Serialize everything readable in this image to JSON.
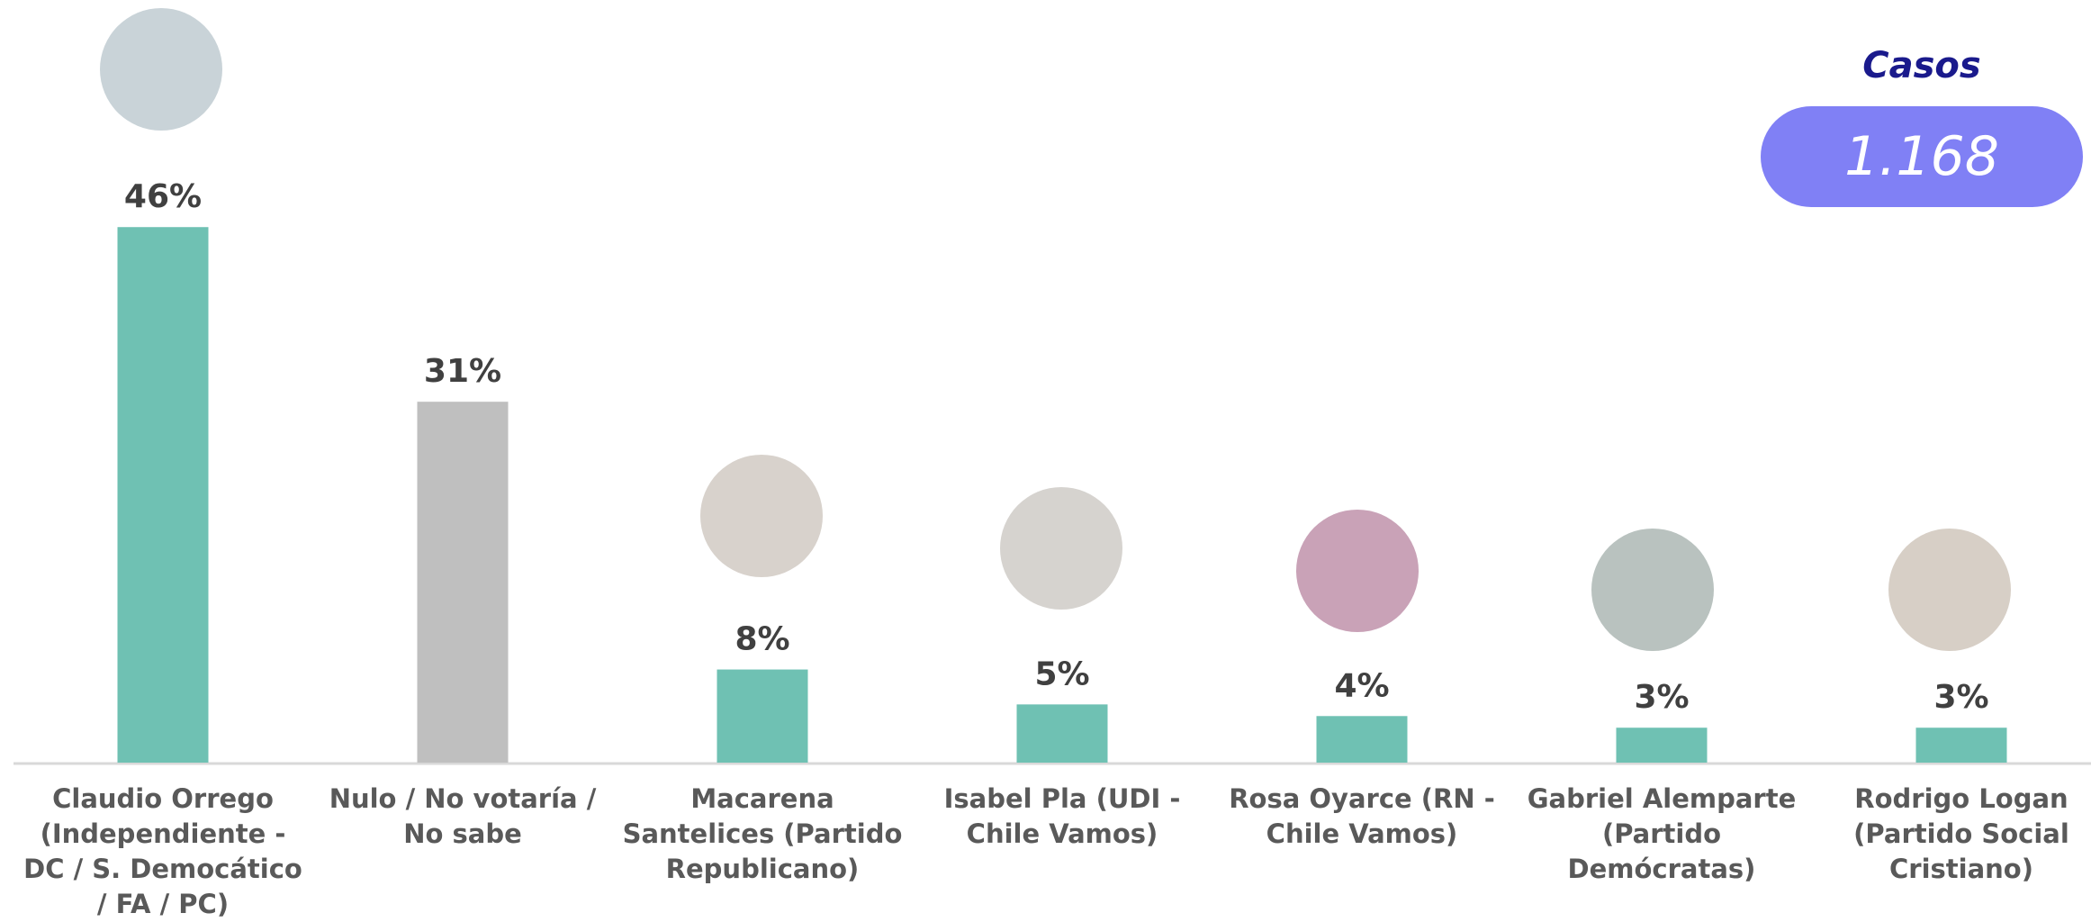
{
  "chart_data": {
    "type": "bar",
    "categories": [
      "Claudio Orrego (Independiente - DC / S. Democático / FA / PC)",
      "Nulo / No votaría / No sabe",
      "Macarena Santelices (Partido Republicano)",
      "Isabel Pla (UDI - Chile Vamos)",
      "Rosa Oyarce (RN - Chile Vamos)",
      "Gabriel Alemparte (Partido Demócratas)",
      "Rodrigo Logan (Partido Social Cristiano)"
    ],
    "values": [
      46,
      31,
      8,
      5,
      4,
      3,
      3
    ],
    "value_labels": [
      "46%",
      "31%",
      "8%",
      "5%",
      "4%",
      "3%",
      "3%"
    ],
    "colors": [
      "#6fc1b3",
      "#bfbfbf",
      "#6fc1b3",
      "#6fc1b3",
      "#6fc1b3",
      "#6fc1b3",
      "#6fc1b3"
    ],
    "cases_title": "Casos",
    "cases": {
      "value": 1168,
      "label": "1.168"
    }
  }
}
